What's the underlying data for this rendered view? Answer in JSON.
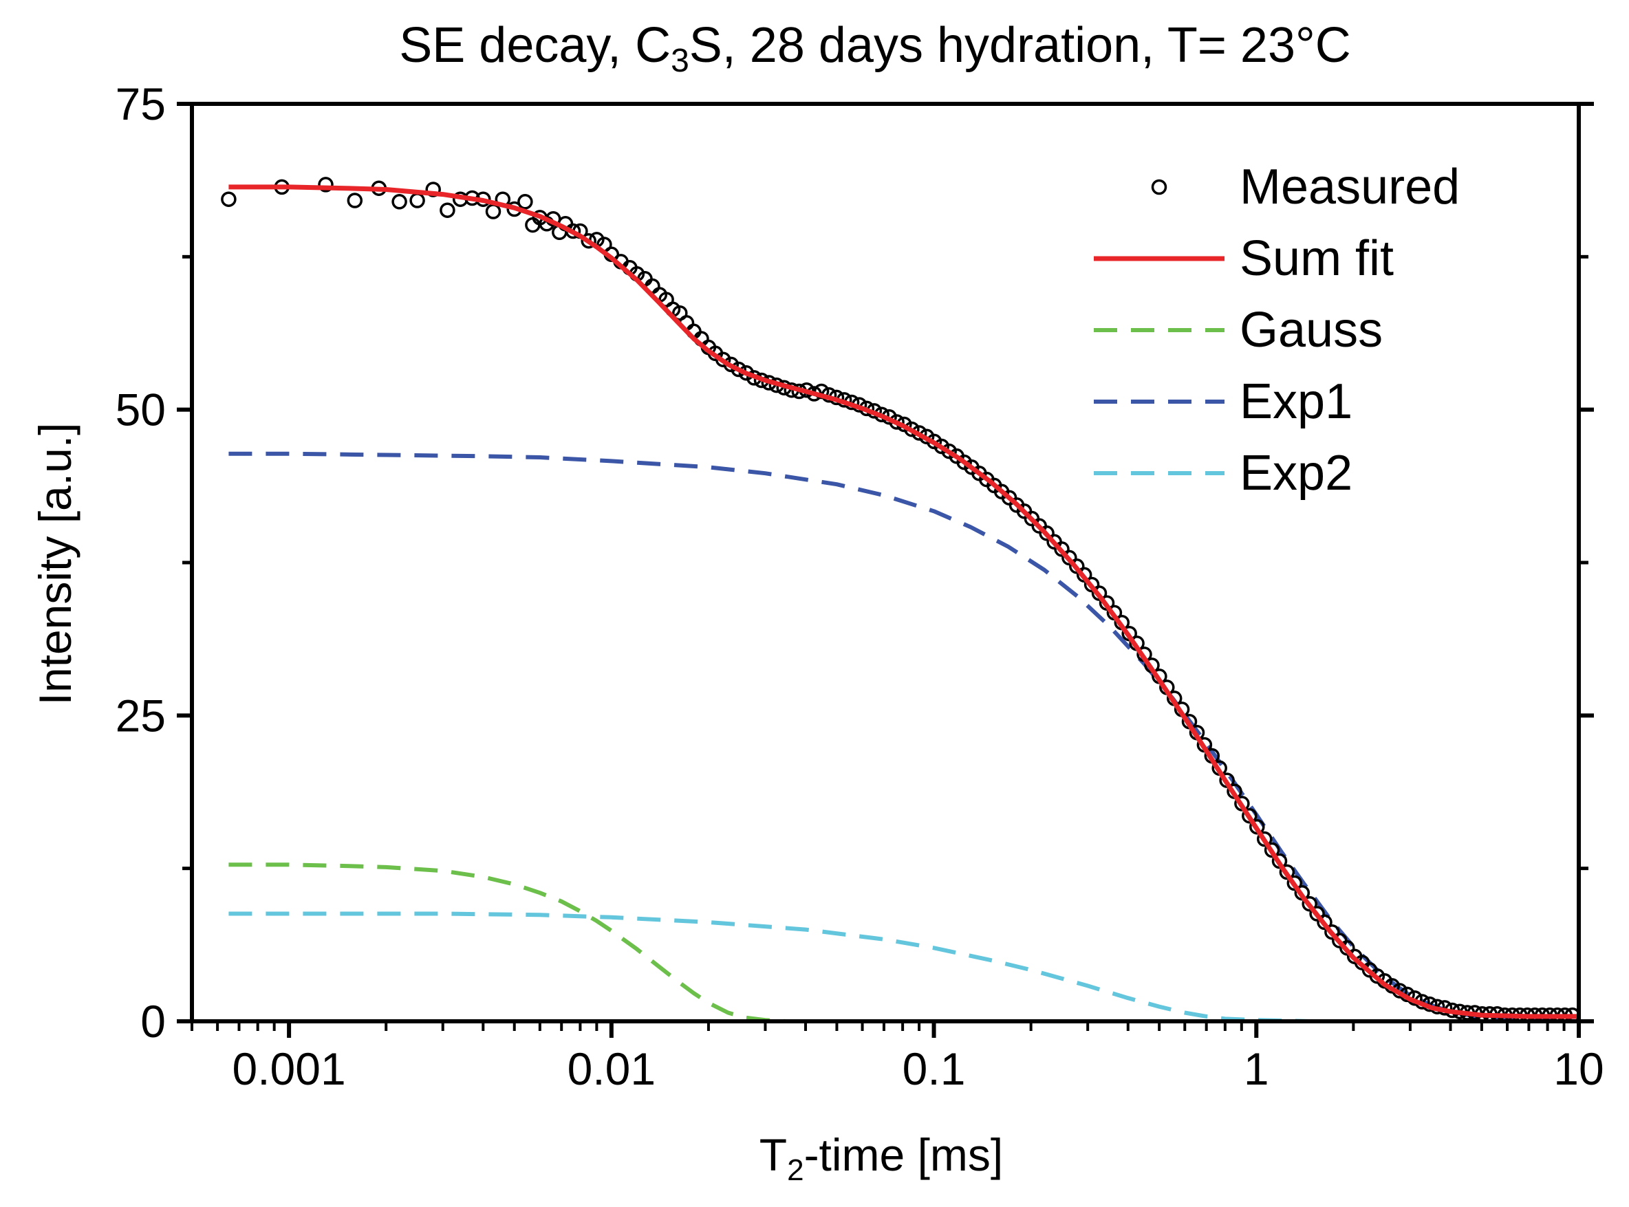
{
  "chart_data": {
    "type": "scatter",
    "title_parts": {
      "pre": "SE decay, C",
      "sub": "3",
      "post": "S, 28 days hydration, T= 23°C"
    },
    "xlabel_parts": {
      "pre": "T",
      "sub": "2",
      "post": "-time [ms]"
    },
    "ylabel": "Intensity [a.u.]",
    "xscale": "log",
    "xlim": [
      0.0005,
      10
    ],
    "ylim": [
      0,
      75
    ],
    "xticks": [
      {
        "value": 0.001,
        "label": "0.001"
      },
      {
        "value": 0.01,
        "label": "0.01"
      },
      {
        "value": 0.1,
        "label": "0.1"
      },
      {
        "value": 1,
        "label": "1"
      },
      {
        "value": 10,
        "label": "10"
      }
    ],
    "yticks": [
      {
        "value": 0,
        "label": "0"
      },
      {
        "value": 25,
        "label": "25"
      },
      {
        "value": 50,
        "label": "50"
      },
      {
        "value": 75,
        "label": "75"
      }
    ],
    "legend_position": "top-right",
    "grid": false,
    "series": [
      {
        "name": "Measured",
        "kind": "markers",
        "color": "#000000",
        "points": [
          [
            0.00065,
            67.2
          ],
          [
            0.00095,
            68.2
          ],
          [
            0.0013,
            68.4
          ],
          [
            0.0016,
            67.1
          ],
          [
            0.0019,
            68.1
          ],
          [
            0.0022,
            67.0
          ],
          [
            0.0025,
            67.1
          ],
          [
            0.0028,
            68.0
          ],
          [
            0.0031,
            66.3
          ],
          [
            0.0034,
            67.2
          ],
          [
            0.0037,
            67.3
          ],
          [
            0.004,
            67.2
          ],
          [
            0.0043,
            66.2
          ],
          [
            0.0046,
            67.2
          ],
          [
            0.005,
            66.4
          ],
          [
            0.0054,
            67.0
          ],
          [
            0.0057,
            65.1
          ],
          [
            0.006,
            65.7
          ],
          [
            0.0063,
            65.2
          ],
          [
            0.0066,
            65.6
          ],
          [
            0.0069,
            64.5
          ],
          [
            0.0072,
            65.2
          ],
          [
            0.0076,
            64.6
          ],
          [
            0.008,
            64.6
          ],
          [
            0.0085,
            63.8
          ],
          [
            0.009,
            63.9
          ],
          [
            0.0095,
            63.5
          ],
          [
            0.01,
            62.7
          ],
          [
            0.0107,
            62.1
          ],
          [
            0.0114,
            61.6
          ],
          [
            0.012,
            61.1
          ],
          [
            0.0127,
            60.7
          ],
          [
            0.0134,
            60.1
          ],
          [
            0.0141,
            59.4
          ],
          [
            0.0148,
            59.0
          ],
          [
            0.0155,
            58.2
          ],
          [
            0.0163,
            57.9
          ],
          [
            0.0171,
            57.1
          ],
          [
            0.018,
            56.4
          ],
          [
            0.019,
            55.8
          ],
          [
            0.02,
            55.1
          ],
          [
            0.021,
            54.6
          ],
          [
            0.0222,
            54.1
          ],
          [
            0.0235,
            53.7
          ],
          [
            0.0248,
            53.3
          ],
          [
            0.0262,
            53.0
          ],
          [
            0.0277,
            52.6
          ],
          [
            0.0292,
            52.4
          ],
          [
            0.0308,
            52.2
          ],
          [
            0.0325,
            52.0
          ],
          [
            0.0343,
            51.8
          ],
          [
            0.0362,
            51.6
          ],
          [
            0.0382,
            51.5
          ],
          [
            0.0403,
            51.6
          ],
          [
            0.0425,
            51.3
          ],
          [
            0.0448,
            51.5
          ],
          [
            0.0473,
            51.2
          ],
          [
            0.0499,
            51.0
          ],
          [
            0.0527,
            50.8
          ],
          [
            0.0556,
            50.6
          ],
          [
            0.0587,
            50.4
          ],
          [
            0.0619,
            50.1
          ],
          [
            0.0653,
            49.9
          ],
          [
            0.0689,
            49.6
          ],
          [
            0.0727,
            49.4
          ],
          [
            0.0767,
            49.0
          ],
          [
            0.0809,
            48.8
          ],
          [
            0.0854,
            48.4
          ],
          [
            0.0901,
            48.1
          ],
          [
            0.095,
            47.8
          ],
          [
            0.1002,
            47.4
          ],
          [
            0.1057,
            47.0
          ],
          [
            0.1115,
            46.6
          ],
          [
            0.1177,
            46.2
          ],
          [
            0.1242,
            45.7
          ],
          [
            0.131,
            45.3
          ],
          [
            0.1382,
            44.8
          ],
          [
            0.1458,
            44.3
          ],
          [
            0.1539,
            43.8
          ],
          [
            0.1623,
            43.3
          ],
          [
            0.1713,
            42.8
          ],
          [
            0.1807,
            42.2
          ],
          [
            0.1907,
            41.7
          ],
          [
            0.2012,
            41.1
          ],
          [
            0.2122,
            40.5
          ],
          [
            0.2239,
            39.9
          ],
          [
            0.2363,
            39.2
          ],
          [
            0.2493,
            38.6
          ],
          [
            0.263,
            37.9
          ],
          [
            0.2775,
            37.2
          ],
          [
            0.2928,
            36.5
          ],
          [
            0.3089,
            35.7
          ],
          [
            0.3259,
            35.0
          ],
          [
            0.3439,
            34.2
          ],
          [
            0.3628,
            33.4
          ],
          [
            0.3828,
            32.6
          ],
          [
            0.4039,
            31.7
          ],
          [
            0.4261,
            30.9
          ],
          [
            0.4496,
            30.0
          ],
          [
            0.4744,
            29.1
          ],
          [
            0.5005,
            28.2
          ],
          [
            0.5281,
            27.3
          ],
          [
            0.5572,
            26.4
          ],
          [
            0.5878,
            25.5
          ],
          [
            0.6202,
            24.5
          ],
          [
            0.6544,
            23.6
          ],
          [
            0.6904,
            22.6
          ],
          [
            0.7284,
            21.7
          ],
          [
            0.7686,
            20.7
          ],
          [
            0.8109,
            19.7
          ],
          [
            0.8556,
            18.8
          ],
          [
            0.9027,
            17.8
          ],
          [
            0.9524,
            16.8
          ],
          [
            1.0049,
            15.9
          ],
          [
            1.0603,
            14.9
          ],
          [
            1.1187,
            14.0
          ],
          [
            1.1803,
            13.1
          ],
          [
            1.2453,
            12.2
          ],
          [
            1.3139,
            11.3
          ],
          [
            1.3863,
            10.5
          ],
          [
            1.4626,
            9.6
          ],
          [
            1.5432,
            8.8
          ],
          [
            1.6282,
            8.1
          ],
          [
            1.7179,
            7.3
          ],
          [
            1.8125,
            6.6
          ],
          [
            1.9124,
            6.0
          ],
          [
            2.0177,
            5.3
          ],
          [
            2.1288,
            4.8
          ],
          [
            2.2461,
            4.2
          ],
          [
            2.3698,
            3.7
          ],
          [
            2.5003,
            3.3
          ],
          [
            2.638,
            2.9
          ],
          [
            2.7833,
            2.5
          ],
          [
            2.9366,
            2.2
          ],
          [
            3.0984,
            1.9
          ],
          [
            3.269,
            1.6
          ],
          [
            3.4491,
            1.4
          ],
          [
            3.6391,
            1.2
          ],
          [
            3.8395,
            1.1
          ],
          [
            4.051,
            0.9
          ],
          [
            4.2741,
            0.8
          ],
          [
            4.5095,
            0.7
          ],
          [
            4.7579,
            0.7
          ],
          [
            5.02,
            0.6
          ],
          [
            5.2965,
            0.6
          ],
          [
            5.5882,
            0.6
          ],
          [
            5.896,
            0.5
          ],
          [
            6.2208,
            0.5
          ],
          [
            6.5634,
            0.5
          ],
          [
            6.9249,
            0.5
          ],
          [
            7.3063,
            0.5
          ],
          [
            7.7088,
            0.5
          ],
          [
            8.1334,
            0.5
          ],
          [
            8.5814,
            0.5
          ],
          [
            9.054,
            0.5
          ],
          [
            9.5527,
            0.5
          ]
        ]
      },
      {
        "name": "Sum fit",
        "kind": "solid",
        "color": "#e8262a",
        "points": [
          [
            0.00065,
            68.2
          ],
          [
            0.001,
            68.2
          ],
          [
            0.0015,
            68.1
          ],
          [
            0.002,
            68.0
          ],
          [
            0.003,
            67.6
          ],
          [
            0.004,
            67.1
          ],
          [
            0.005,
            66.5
          ],
          [
            0.006,
            65.8
          ],
          [
            0.007,
            65.0
          ],
          [
            0.008,
            64.2
          ],
          [
            0.009,
            63.3
          ],
          [
            0.01,
            62.4
          ],
          [
            0.012,
            60.6
          ],
          [
            0.014,
            58.8
          ],
          [
            0.016,
            57.2
          ],
          [
            0.018,
            55.8
          ],
          [
            0.02,
            54.8
          ],
          [
            0.023,
            53.7
          ],
          [
            0.026,
            53.0
          ],
          [
            0.03,
            52.4
          ],
          [
            0.035,
            51.9
          ],
          [
            0.04,
            51.5
          ],
          [
            0.05,
            50.8
          ],
          [
            0.06,
            50.1
          ],
          [
            0.07,
            49.4
          ],
          [
            0.08,
            48.7
          ],
          [
            0.1,
            47.3
          ],
          [
            0.12,
            46.0
          ],
          [
            0.15,
            44.1
          ],
          [
            0.18,
            42.3
          ],
          [
            0.22,
            40.0
          ],
          [
            0.27,
            37.4
          ],
          [
            0.33,
            34.6
          ],
          [
            0.4,
            31.6
          ],
          [
            0.5,
            27.9
          ],
          [
            0.6,
            24.8
          ],
          [
            0.7,
            22.1
          ],
          [
            0.8,
            19.7
          ],
          [
            1.0,
            15.8
          ],
          [
            1.2,
            12.6
          ],
          [
            1.4,
            10.1
          ],
          [
            1.7,
            7.3
          ],
          [
            2.0,
            5.2
          ],
          [
            2.5,
            3.0
          ],
          [
            3.0,
            1.8
          ],
          [
            3.5,
            1.1
          ],
          [
            4.0,
            0.8
          ],
          [
            5.0,
            0.5
          ],
          [
            7.0,
            0.4
          ],
          [
            10.0,
            0.4
          ]
        ]
      },
      {
        "name": "Gauss",
        "kind": "dashed",
        "color": "#6cbf4a",
        "points": [
          [
            0.00065,
            12.8
          ],
          [
            0.001,
            12.8
          ],
          [
            0.0015,
            12.7
          ],
          [
            0.002,
            12.6
          ],
          [
            0.003,
            12.3
          ],
          [
            0.004,
            11.8
          ],
          [
            0.005,
            11.2
          ],
          [
            0.006,
            10.5
          ],
          [
            0.007,
            9.8
          ],
          [
            0.008,
            9.0
          ],
          [
            0.009,
            8.2
          ],
          [
            0.01,
            7.4
          ],
          [
            0.012,
            5.9
          ],
          [
            0.014,
            4.5
          ],
          [
            0.016,
            3.3
          ],
          [
            0.018,
            2.3
          ],
          [
            0.02,
            1.5
          ],
          [
            0.023,
            0.7
          ],
          [
            0.026,
            0.3
          ],
          [
            0.03,
            0.1
          ],
          [
            0.035,
            0.0
          ],
          [
            0.05,
            0.0
          ],
          [
            0.1,
            0.0
          ],
          [
            1.0,
            0.0
          ],
          [
            10.0,
            0.0
          ]
        ]
      },
      {
        "name": "Exp1",
        "kind": "dashed",
        "color": "#3b55a7",
        "points": [
          [
            0.00065,
            46.4
          ],
          [
            0.001,
            46.4
          ],
          [
            0.002,
            46.3
          ],
          [
            0.004,
            46.2
          ],
          [
            0.006,
            46.1
          ],
          [
            0.01,
            45.8
          ],
          [
            0.02,
            45.3
          ],
          [
            0.03,
            44.8
          ],
          [
            0.05,
            43.9
          ],
          [
            0.07,
            43.0
          ],
          [
            0.1,
            41.7
          ],
          [
            0.13,
            40.4
          ],
          [
            0.17,
            38.8
          ],
          [
            0.22,
            36.9
          ],
          [
            0.28,
            34.7
          ],
          [
            0.35,
            32.3
          ],
          [
            0.45,
            29.2
          ],
          [
            0.55,
            26.4
          ],
          [
            0.7,
            22.7
          ],
          [
            0.85,
            19.6
          ],
          [
            1.0,
            16.9
          ],
          [
            1.2,
            13.8
          ],
          [
            1.4,
            11.3
          ],
          [
            1.7,
            8.3
          ],
          [
            2.0,
            6.1
          ],
          [
            2.5,
            3.6
          ],
          [
            3.0,
            2.1
          ],
          [
            3.5,
            1.3
          ],
          [
            4.0,
            0.8
          ],
          [
            5.0,
            0.3
          ],
          [
            7.0,
            0.1
          ],
          [
            10.0,
            0.0
          ]
        ]
      },
      {
        "name": "Exp2",
        "kind": "dashed",
        "color": "#63c6dc",
        "points": [
          [
            0.00065,
            8.8
          ],
          [
            0.001,
            8.8
          ],
          [
            0.003,
            8.8
          ],
          [
            0.006,
            8.7
          ],
          [
            0.01,
            8.5
          ],
          [
            0.02,
            8.1
          ],
          [
            0.04,
            7.5
          ],
          [
            0.07,
            6.7
          ],
          [
            0.1,
            6.0
          ],
          [
            0.15,
            5.0
          ],
          [
            0.2,
            4.2
          ],
          [
            0.3,
            2.9
          ],
          [
            0.4,
            1.9
          ],
          [
            0.5,
            1.2
          ],
          [
            0.6,
            0.7
          ],
          [
            0.7,
            0.4
          ],
          [
            0.8,
            0.2
          ],
          [
            1.0,
            0.1
          ],
          [
            1.5,
            0.0
          ],
          [
            3.0,
            0.0
          ],
          [
            10.0,
            0.0
          ]
        ]
      }
    ]
  }
}
